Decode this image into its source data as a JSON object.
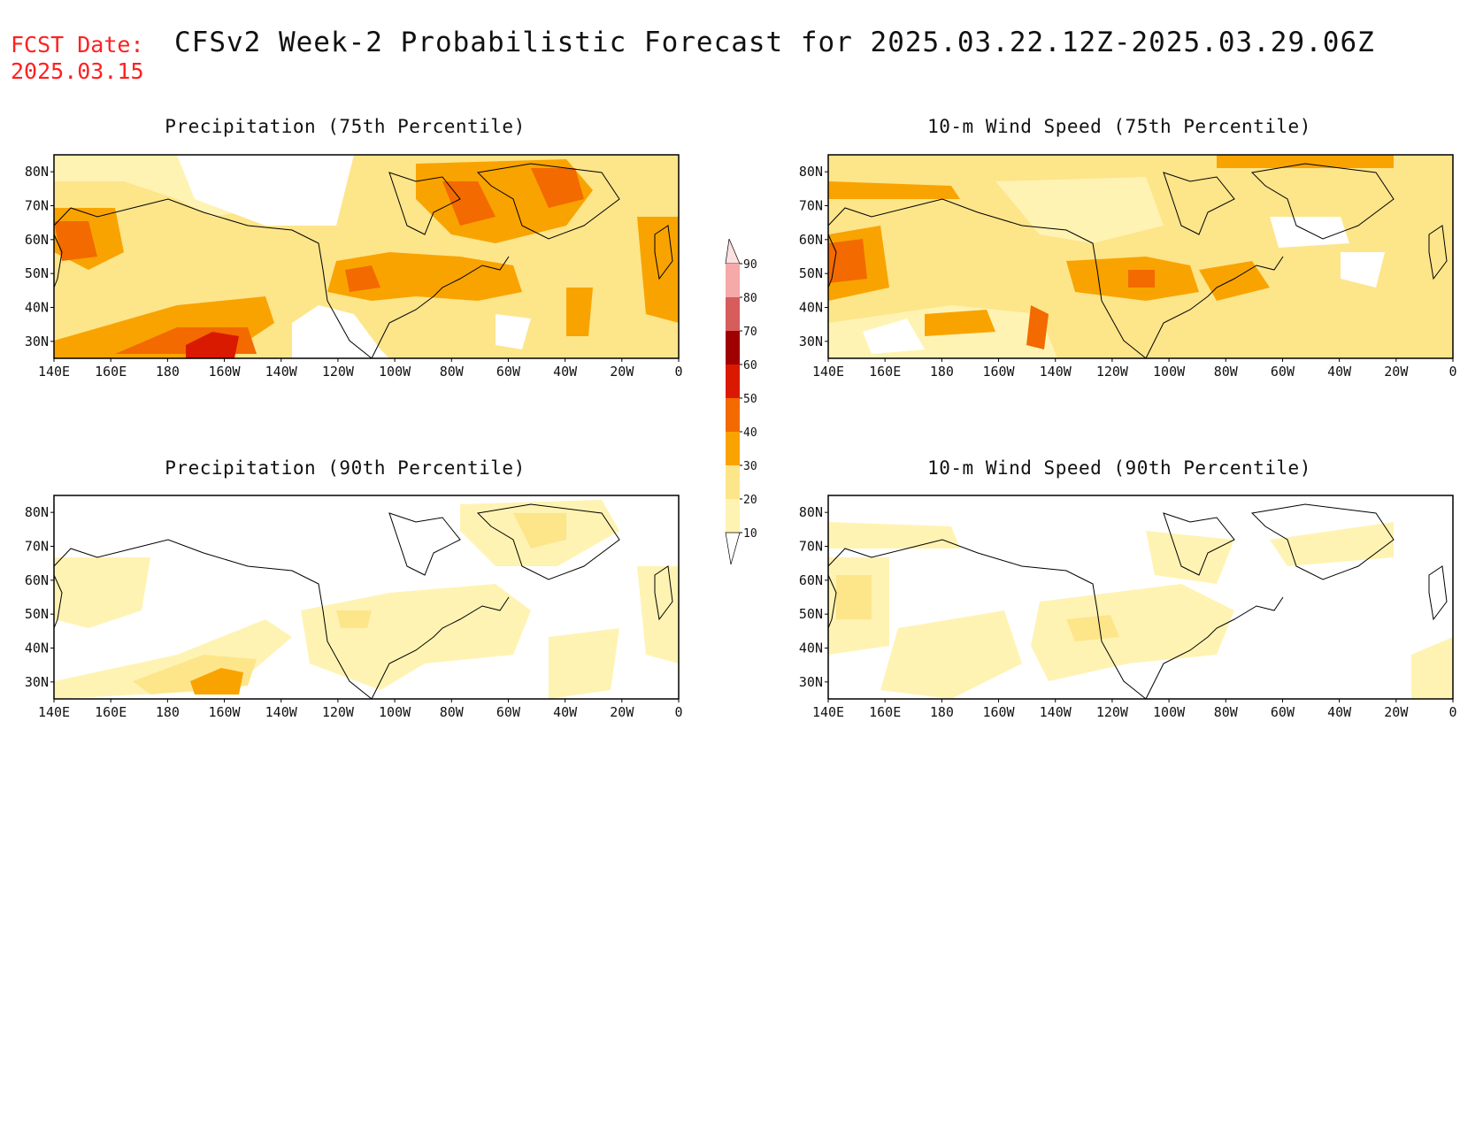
{
  "header": {
    "fcst_label": "FCST Date:",
    "fcst_date": "2025.03.15",
    "title": "CFSv2 Week-2 Probabilistic Forecast for 2025.03.22.12Z-2025.03.29.06Z"
  },
  "colors": {
    "fcst_text": "#ff2020",
    "levels": [
      "#ffffff",
      "#fff3b3",
      "#fde58a",
      "#f9a300",
      "#f26a00",
      "#d91a00",
      "#a00000",
      "#d75c5c",
      "#f5a9a9",
      "#fde0e0"
    ]
  },
  "panels": [
    {
      "id": "precip75",
      "title": "Precipitation (75th Percentile)"
    },
    {
      "id": "wind75",
      "title": "10-m Wind Speed (75th Percentile)"
    },
    {
      "id": "precip90",
      "title": "Precipitation (90th Percentile)"
    },
    {
      "id": "wind90",
      "title": "10-m Wind Speed (90th Percentile)"
    }
  ],
  "axes": {
    "lon_labels": [
      "140E",
      "160E",
      "180",
      "160W",
      "140W",
      "120W",
      "100W",
      "80W",
      "60W",
      "40W",
      "20W",
      "0"
    ],
    "lat_labels": [
      "80N",
      "70N",
      "60N",
      "50N",
      "40N",
      "30N"
    ],
    "lon_range": [
      140,
      360
    ],
    "lat_range": [
      25,
      85
    ]
  },
  "colorbar": {
    "labels": [
      "10",
      "20",
      "30",
      "40",
      "50",
      "60",
      "70",
      "80",
      "90"
    ]
  }
}
